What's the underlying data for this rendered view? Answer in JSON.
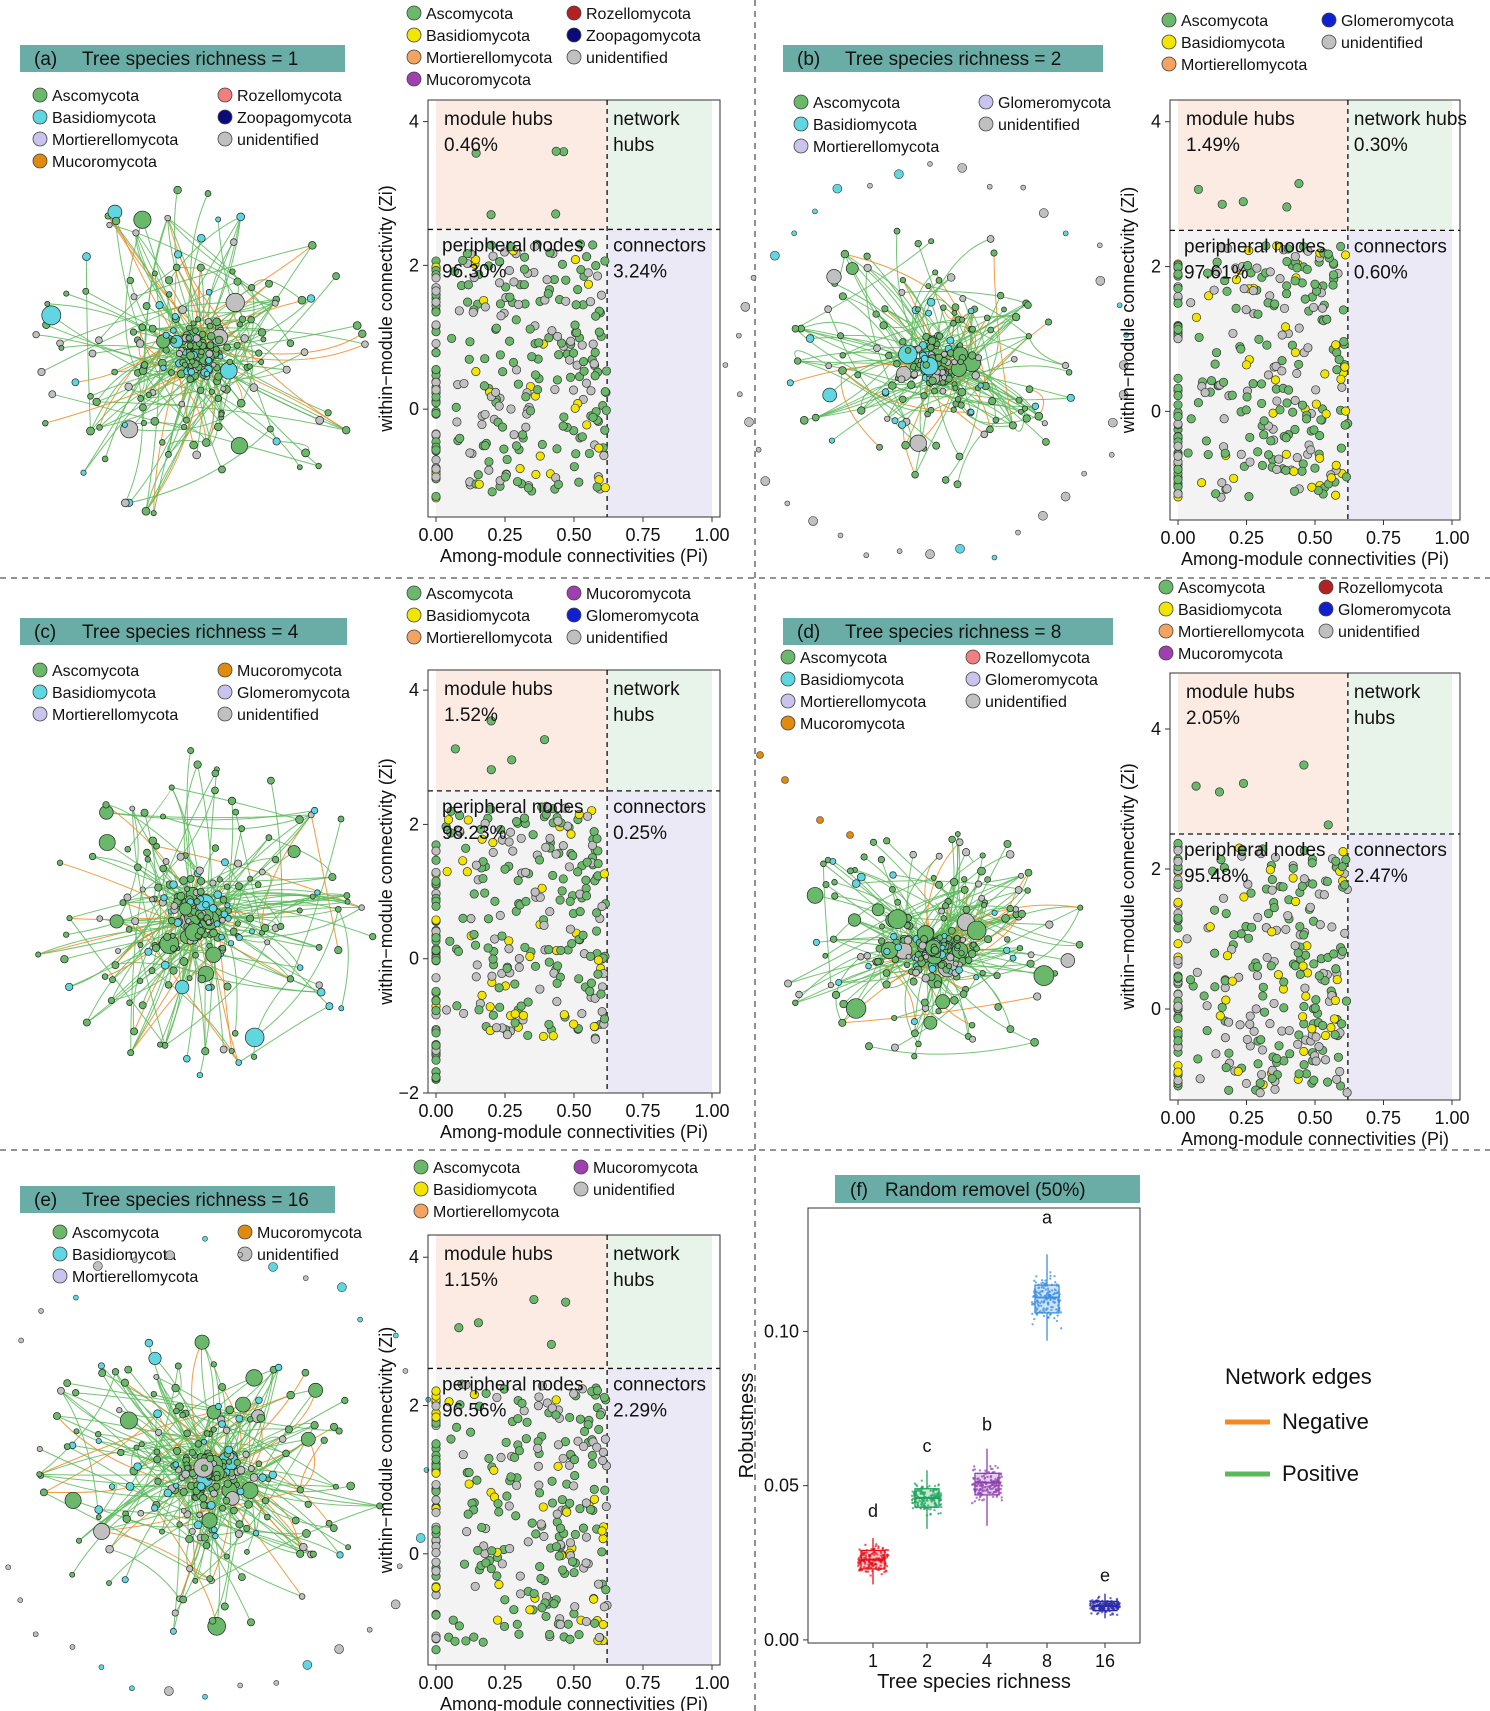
{
  "figure": {
    "colors": {
      "ascomycota": "#6ab86a",
      "basidiomycota": "#f2e500",
      "basidiomycota_network": "#5fd6e0",
      "mortierellomycota": "#f4a460",
      "mortierellomycota_network": "#c8c4ee",
      "rozellomycota": "#b22222",
      "rozellomycota_network": "#f08080",
      "zoopagomycota": "#0a0a7a",
      "mucoromycota": "#a040b0",
      "mucoromycota_network": "#e08a10",
      "glomeromycota": "#1020d0",
      "glomeromycota_network": "#c8c4ee",
      "unidentified": "#c0c0c0",
      "edge_positive": "#5cb85c",
      "edge_negative": "#f08a24",
      "title_bg": "#6aada6",
      "module_hubs_bg": "#fbebe3",
      "network_hubs_bg": "#e8f4ea",
      "peripheral_bg": "#f3f3f3",
      "connectors_bg": "#ece9f6"
    },
    "panels": [
      {
        "label": "(a)",
        "title": "Tree species richness = 1",
        "network_legend": [
          "Ascomycota",
          "Rozellomycota",
          "Basidiomycota",
          "Zoopagomycota",
          "Mortierellomycota",
          "unidentified",
          "Mucoromycota"
        ],
        "zipi_legend": [
          "Ascomycota",
          "Rozellomycota",
          "Basidiomycota",
          "Zoopagomycota",
          "Mortierellomycota",
          "unidentified",
          "Mucoromycota"
        ],
        "quadrants": {
          "module_hubs": [
            "module hubs",
            "0.46%"
          ],
          "network_hubs": [
            "network",
            "hubs"
          ],
          "peripheral": [
            "peripheral nodes",
            "96.30%"
          ],
          "connectors": [
            "connectors",
            "3.24%"
          ]
        },
        "xlabel": "Among-module connectivities (Pi)",
        "ylabel": "within−module connectivity (Zi)",
        "xticks": [
          "0.00",
          "0.25",
          "0.50",
          "0.75",
          "1.00"
        ],
        "yticks": [
          "0",
          "2",
          "4"
        ]
      },
      {
        "label": "(b)",
        "title": "Tree species richness = 2",
        "network_legend": [
          "Ascomycota",
          "Glomeromycota",
          "Basidiomycota",
          "unidentified",
          "Mortierellomycota"
        ],
        "zipi_legend": [
          "Ascomycota",
          "Glomeromycota",
          "Basidiomycota",
          "unidentified",
          "Mortierellomycota"
        ],
        "quadrants": {
          "module_hubs": [
            "module hubs",
            "1.49%"
          ],
          "network_hubs": [
            "network hubs",
            "0.30%"
          ],
          "peripheral": [
            "peripheral nodes",
            "97.61%"
          ],
          "connectors": [
            "connectors",
            "0.60%"
          ]
        },
        "xlabel": "Among-module connectivities (Pi)",
        "ylabel": "within−module connectivity (Zi)",
        "xticks": [
          "0.00",
          "0.25",
          "0.50",
          "0.75",
          "1.00"
        ],
        "yticks": [
          "0",
          "2",
          "4"
        ]
      },
      {
        "label": "(c)",
        "title": "Tree species richness = 4",
        "network_legend": [
          "Ascomycota",
          "Mucoromycota",
          "Basidiomycota",
          "Glomeromycota",
          "Mortierellomycota",
          "unidentified"
        ],
        "zipi_legend": [
          "Ascomycota",
          "Mucoromycota",
          "Basidiomycota",
          "Glomeromycota",
          "Mortierellomycota",
          "unidentified"
        ],
        "quadrants": {
          "module_hubs": [
            "module hubs",
            "1.52%"
          ],
          "network_hubs": [
            "network",
            "hubs"
          ],
          "peripheral": [
            "peripheral nodes",
            "98.23%"
          ],
          "connectors": [
            "connectors",
            "0.25%"
          ]
        },
        "xlabel": "Among-module connectivities (Pi)",
        "ylabel": "within−module connectivity (Zi)",
        "xticks": [
          "0.00",
          "0.25",
          "0.50",
          "0.75",
          "1.00"
        ],
        "yticks": [
          "−2",
          "0",
          "2",
          "4"
        ]
      },
      {
        "label": "(d)",
        "title": "Tree species richness = 8",
        "network_legend": [
          "Ascomycota",
          "Rozellomycota",
          "Basidiomycota",
          "Glomeromycota",
          "Mortierellomycota",
          "unidentified",
          "Mucoromycota"
        ],
        "zipi_legend": [
          "Ascomycota",
          "Rozellomycota",
          "Basidiomycota",
          "Glomeromycota",
          "Mortierellomycota",
          "unidentified",
          "Mucoromycota"
        ],
        "quadrants": {
          "module_hubs": [
            "module hubs",
            "2.05%"
          ],
          "network_hubs": [
            "network",
            "hubs"
          ],
          "peripheral": [
            "peripheral nodes",
            "95.48%"
          ],
          "connectors": [
            "connectors",
            "2.47%"
          ]
        },
        "xlabel": "Among-module connectivities (Pi)",
        "ylabel": "within−module connectivity (Zi)",
        "xticks": [
          "0.00",
          "0.25",
          "0.50",
          "0.75",
          "1.00"
        ],
        "yticks": [
          "0",
          "2",
          "4"
        ]
      },
      {
        "label": "(e)",
        "title": "Tree species richness = 16",
        "network_legend": [
          "Ascomycota",
          "Mucoromycota",
          "Basidiomycota",
          "unidentified",
          "Mortierellomycota"
        ],
        "zipi_legend": [
          "Ascomycota",
          "Mucoromycota",
          "Basidiomycota",
          "unidentified",
          "Mortierellomycota"
        ],
        "quadrants": {
          "module_hubs": [
            "module hubs",
            "1.15%"
          ],
          "network_hubs": [
            "network",
            "hubs"
          ],
          "peripheral": [
            "peripheral nodes",
            "96.56%"
          ],
          "connectors": [
            "connectors",
            "2.29%"
          ]
        },
        "xlabel": "Among-module connectivities (Pi)",
        "ylabel": "within−module connectivity (Zi)",
        "xticks": [
          "0.00",
          "0.25",
          "0.50",
          "0.75",
          "1.00"
        ],
        "yticks": [
          "0",
          "2",
          "4"
        ]
      }
    ],
    "panel_f": {
      "label": "(f)",
      "title": "Random removel (50%)",
      "legend_title": "Network edges",
      "legend_items": [
        "Negative",
        "Positive"
      ]
    }
  },
  "chart_data": [
    {
      "type": "scatter",
      "title": "Zi-Pi plot, Tree species richness = 1",
      "xlabel": "Among-module connectivities (Pi)",
      "ylabel": "within-module connectivity (Zi)",
      "xlim": [
        0,
        1
      ],
      "ylim": [
        -1.5,
        4.3
      ],
      "thresholds": {
        "zi": 2.5,
        "pi": 0.62
      },
      "quadrant_percentages": {
        "module_hubs": 0.46,
        "network_hubs": 0,
        "peripheral_nodes": 96.3,
        "connectors": 3.24
      }
    },
    {
      "type": "scatter",
      "title": "Zi-Pi plot, Tree species richness = 2",
      "xlabel": "Among-module connectivities (Pi)",
      "ylabel": "within-module connectivity (Zi)",
      "xlim": [
        0,
        1
      ],
      "ylim": [
        -1.5,
        4.3
      ],
      "thresholds": {
        "zi": 2.5,
        "pi": 0.62
      },
      "quadrant_percentages": {
        "module_hubs": 1.49,
        "network_hubs": 0.3,
        "peripheral_nodes": 97.61,
        "connectors": 0.6
      }
    },
    {
      "type": "scatter",
      "title": "Zi-Pi plot, Tree species richness = 4",
      "xlabel": "Among-module connectivities (Pi)",
      "ylabel": "within-module connectivity (Zi)",
      "xlim": [
        0,
        1
      ],
      "ylim": [
        -2,
        4.3
      ],
      "thresholds": {
        "zi": 2.5,
        "pi": 0.62
      },
      "quadrant_percentages": {
        "module_hubs": 1.52,
        "network_hubs": 0,
        "peripheral_nodes": 98.23,
        "connectors": 0.25
      }
    },
    {
      "type": "scatter",
      "title": "Zi-Pi plot, Tree species richness = 8",
      "xlabel": "Among-module connectivities (Pi)",
      "ylabel": "within-module connectivity (Zi)",
      "xlim": [
        0,
        1
      ],
      "ylim": [
        -1.3,
        4.8
      ],
      "thresholds": {
        "zi": 2.5,
        "pi": 0.62
      },
      "quadrant_percentages": {
        "module_hubs": 2.05,
        "network_hubs": 0,
        "peripheral_nodes": 95.48,
        "connectors": 2.47
      }
    },
    {
      "type": "scatter",
      "title": "Zi-Pi plot, Tree species richness = 16",
      "xlabel": "Among-module connectivities (Pi)",
      "ylabel": "within-module connectivity (Zi)",
      "xlim": [
        0,
        1
      ],
      "ylim": [
        -1.5,
        4.3
      ],
      "thresholds": {
        "zi": 2.5,
        "pi": 0.62
      },
      "quadrant_percentages": {
        "module_hubs": 1.15,
        "network_hubs": 0,
        "peripheral_nodes": 96.56,
        "connectors": 2.29
      }
    },
    {
      "type": "box",
      "title": "Random removel (50%)",
      "xlabel": "Tree species richness",
      "ylabel": "Robustness",
      "categories": [
        "1",
        "2",
        "4",
        "8",
        "16"
      ],
      "letters": [
        "d",
        "c",
        "b",
        "a",
        "e"
      ],
      "colors": [
        "#e8101a",
        "#1fa35a",
        "#8e3fb0",
        "#3b8ee0",
        "#2a2aa8"
      ],
      "medians": [
        0.026,
        0.046,
        0.051,
        0.111,
        0.011
      ],
      "q1": [
        0.023,
        0.043,
        0.047,
        0.106,
        0.0095
      ],
      "q3": [
        0.029,
        0.049,
        0.054,
        0.115,
        0.0125
      ],
      "whisker_low": [
        0.018,
        0.036,
        0.037,
        0.097,
        0.007
      ],
      "whisker_high": [
        0.033,
        0.055,
        0.062,
        0.125,
        0.015
      ],
      "point_min": [
        0.016,
        0.031,
        0.03,
        0.078,
        0.006
      ],
      "point_max": [
        0.037,
        0.058,
        0.065,
        0.132,
        0.016
      ],
      "ylim": [
        -0.001,
        0.14
      ],
      "yticks": [
        0.0,
        0.05,
        0.1
      ],
      "ytick_labels": [
        "0.00",
        "0.05",
        "0.10"
      ]
    }
  ]
}
